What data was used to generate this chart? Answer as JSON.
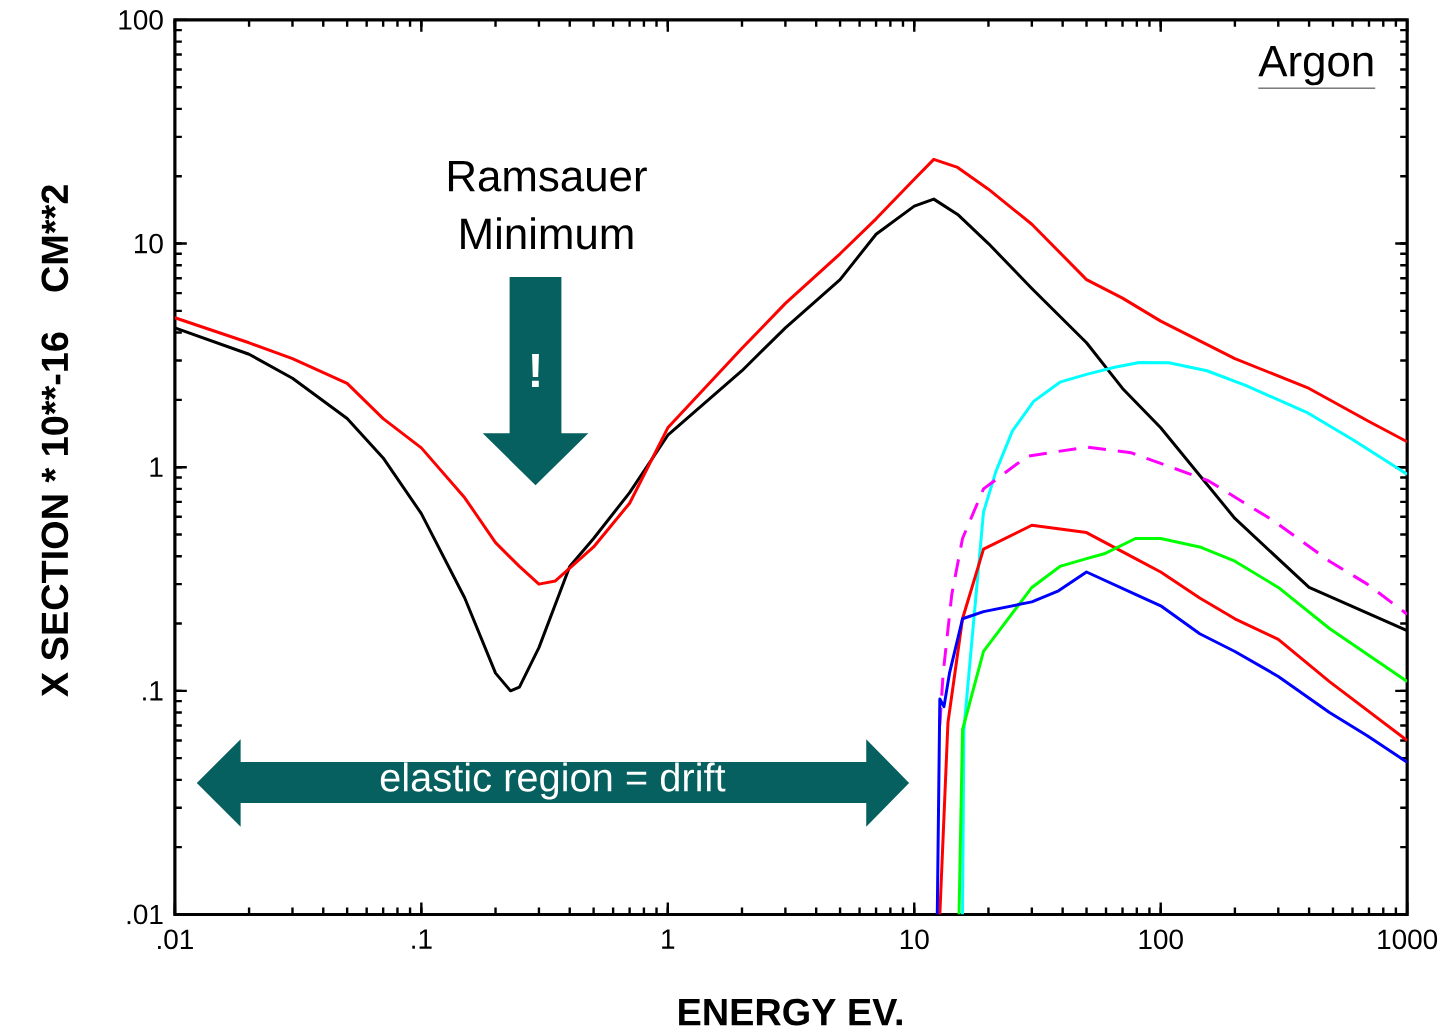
{
  "chart_data": {
    "type": "line",
    "title": "Argon",
    "xlabel": "ENERGY EV.",
    "ylabel": "X SECTION * 10**-16",
    "log": "xy",
    "xlim": [
      0.01,
      1000
    ],
    "ylim": [
      0.01,
      100
    ],
    "xticks": [
      {
        "value": 0.01,
        "label": ".01"
      },
      {
        "value": 0.1,
        "label": ".1"
      },
      1,
      10,
      100,
      1000
    ],
    "yticks": [
      {
        "value": 0.01,
        "label": ".01"
      },
      {
        "value": 0.1,
        "label": ".1"
      },
      1,
      10,
      100
    ],
    "annotations": [
      "Ramsauer Minimum",
      "!",
      "elastic region = drift",
      "CM**2"
    ],
    "series": [
      {
        "color": "#000000",
        "x": [
          0.01,
          0.02,
          0.03,
          0.05,
          0.07,
          0.1,
          0.15,
          0.2,
          0.23,
          0.25,
          0.3,
          0.4,
          0.5,
          0.7,
          1,
          2,
          3,
          5,
          7,
          10,
          12,
          15,
          20,
          30,
          50,
          70,
          100,
          200,
          400,
          1000
        ],
        "values": [
          4.2,
          3.2,
          2.5,
          1.65,
          1.1,
          0.62,
          0.26,
          0.12,
          0.1,
          0.104,
          0.156,
          0.36,
          0.48,
          0.77,
          1.39,
          2.7,
          4.2,
          6.9,
          11,
          14.7,
          15.8,
          13.5,
          10,
          6.3,
          3.6,
          2.25,
          1.5,
          0.59,
          0.29,
          0.186
        ]
      },
      {
        "color": "#ff0000",
        "x": [
          0.01,
          0.02,
          0.03,
          0.05,
          0.07,
          0.1,
          0.15,
          0.2,
          0.25,
          0.3,
          0.35,
          0.5,
          0.7,
          1,
          2,
          3,
          5,
          7,
          10,
          12,
          15,
          20,
          30,
          50,
          70,
          100,
          200,
          400,
          700,
          1000
        ],
        "values": [
          4.66,
          3.6,
          3.06,
          2.37,
          1.65,
          1.22,
          0.73,
          0.46,
          0.36,
          0.3,
          0.31,
          0.44,
          0.69,
          1.5,
          3.4,
          5.4,
          9,
          12.9,
          19.4,
          23.8,
          21.9,
          17.5,
          12.2,
          6.9,
          5.7,
          4.5,
          3.06,
          2.25,
          1.6,
          1.3
        ]
      },
      {
        "color": "#00ffff",
        "x": [
          15.7,
          15.9,
          19.1,
          21.4,
          25,
          30.5,
          39,
          50,
          65,
          82,
          108,
          154,
          221,
          391,
          600,
          1000
        ],
        "values": [
          0.01,
          0.067,
          0.63,
          0.95,
          1.45,
          1.97,
          2.4,
          2.6,
          2.8,
          2.94,
          2.93,
          2.7,
          2.32,
          1.76,
          1.33,
          0.93
        ]
      },
      {
        "color": "#ff00ff",
        "line_style": "dashed",
        "x": [
          12.7,
          13.1,
          14.2,
          15.7,
          19.1,
          28.8,
          50,
          76,
          156,
          284,
          484,
          689,
          1000
        ],
        "values": [
          0.07,
          0.12,
          0.27,
          0.48,
          0.8,
          1.12,
          1.23,
          1.16,
          0.87,
          0.58,
          0.38,
          0.3,
          0.22
        ]
      },
      {
        "color": "#ff0000",
        "x": [
          12.7,
          13.7,
          15.7,
          19.1,
          30,
          50,
          79,
          100,
          144,
          200,
          300,
          484,
          1000
        ],
        "values": [
          0.01,
          0.072,
          0.21,
          0.43,
          0.55,
          0.51,
          0.39,
          0.34,
          0.26,
          0.21,
          0.17,
          0.11,
          0.06
        ]
      },
      {
        "color": "#00ff00",
        "x": [
          15.2,
          15.7,
          19.1,
          30,
          39,
          50,
          59,
          79,
          100,
          144,
          200,
          300,
          484,
          1000
        ],
        "values": [
          0.01,
          0.067,
          0.15,
          0.29,
          0.36,
          0.39,
          0.41,
          0.48,
          0.48,
          0.44,
          0.38,
          0.29,
          0.19,
          0.11
        ]
      },
      {
        "color": "#0000ff",
        "x": [
          12.4,
          12.7,
          13.2,
          13.9,
          15.7,
          19.1,
          30,
          38.5,
          50,
          79,
          100,
          144,
          200,
          300,
          484,
          689,
          1000
        ],
        "values": [
          0.01,
          0.092,
          0.085,
          0.12,
          0.21,
          0.226,
          0.25,
          0.28,
          0.34,
          0.27,
          0.24,
          0.18,
          0.15,
          0.116,
          0.08,
          0.063,
          0.048
        ]
      }
    ]
  }
}
